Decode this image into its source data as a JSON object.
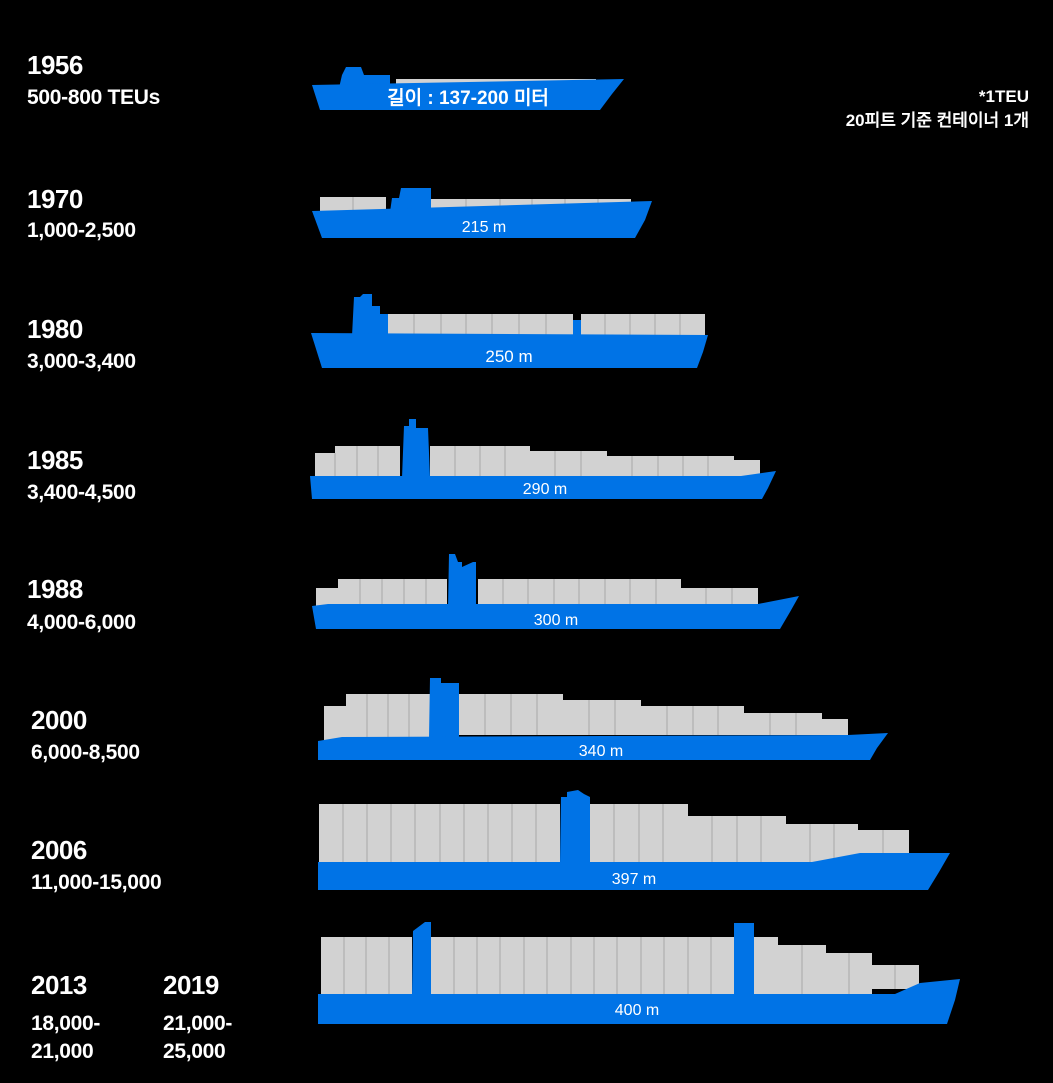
{
  "note": {
    "line1": "*1TEU",
    "line2": "20피트 기준 컨테이너 1개"
  },
  "colors": {
    "hull": "#0073e6",
    "container": "#d2d2d2",
    "divider": "#a8a8a8",
    "background": "#000000",
    "text": "#ffffff"
  },
  "ships": [
    {
      "year": "1956",
      "teu": "500-800 TEUs",
      "length_label": "길이 : 137-200 미터"
    },
    {
      "year": "1970",
      "teu": "1,000-2,500",
      "length_label": "215 m"
    },
    {
      "year": "1980",
      "teu": "3,000-3,400",
      "length_label": "250 m"
    },
    {
      "year": "1985",
      "teu": "3,400-4,500",
      "length_label": "290 m"
    },
    {
      "year": "1988",
      "teu": "4,000-6,000",
      "length_label": "300 m"
    },
    {
      "year": "2000",
      "teu": "6,000-8,500",
      "length_label": "340 m"
    },
    {
      "year": "2006",
      "teu": "11,000-15,000",
      "length_label": "397 m"
    },
    {
      "year": "2013",
      "teu": "18,000-21,000",
      "year2": "2019",
      "teu2": "21,000-25,000",
      "length_label": "400 m"
    }
  ]
}
